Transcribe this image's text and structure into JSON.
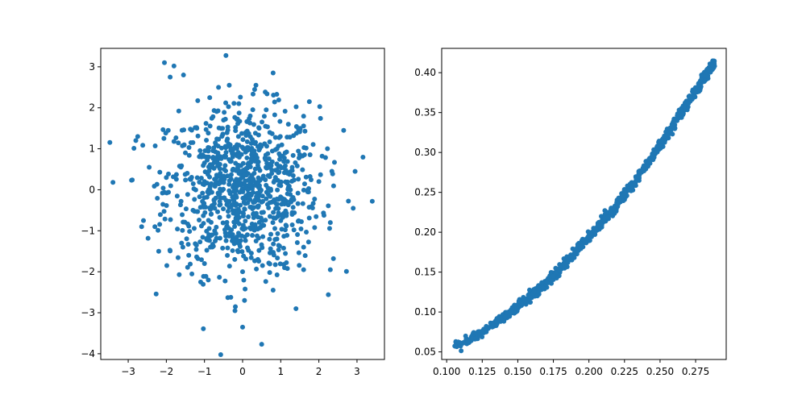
{
  "colors": {
    "marker": "#1f77b4",
    "axes": "#000000",
    "background": "#ffffff"
  },
  "chart_data": [
    {
      "type": "scatter",
      "title": "",
      "xlabel": "",
      "ylabel": "",
      "grid": false,
      "xlim": [
        -3.72,
        3.72
      ],
      "ylim": [
        -4.14,
        3.45
      ],
      "xticks": [
        -3,
        -2,
        -1,
        0,
        1,
        2,
        3
      ],
      "yticks": [
        -4,
        -3,
        -2,
        -1,
        0,
        1,
        2,
        3
      ],
      "xtick_labels": [
        "−3",
        "−2",
        "−1",
        "0",
        "1",
        "2",
        "3"
      ],
      "ytick_labels": [
        "−4",
        "−3",
        "−2",
        "−1",
        "0",
        "1",
        "2",
        "3"
      ],
      "points_note": "Approximately 1000 points drawn from a 2D standard normal distribution centered at (0,0); notable outliers listed below.",
      "points": [
        [
          -2.05,
          3.1
        ],
        [
          -1.8,
          3.02
        ],
        [
          -1.9,
          2.75
        ],
        [
          -1.55,
          2.8
        ],
        [
          0.8,
          2.85
        ],
        [
          -0.35,
          2.55
        ],
        [
          0.35,
          2.55
        ],
        [
          -3.4,
          0.18
        ],
        [
          3.4,
          -0.28
        ],
        [
          -2.75,
          1.3
        ],
        [
          -2.8,
          1.2
        ],
        [
          -2.45,
          0.55
        ],
        [
          2.95,
          0.45
        ],
        [
          2.65,
          1.45
        ],
        [
          0.5,
          -3.77
        ],
        [
          0.0,
          -3.35
        ],
        [
          -0.2,
          -2.95
        ],
        [
          0.05,
          -2.7
        ],
        [
          1.4,
          -2.9
        ],
        [
          2.3,
          -1.95
        ],
        [
          -2.2,
          -1.5
        ],
        [
          -1.1,
          -2.25
        ],
        [
          -0.9,
          -2.2
        ],
        [
          0.8,
          -2.45
        ],
        [
          1.6,
          -1.95
        ],
        [
          -2.6,
          -0.75
        ],
        [
          2.9,
          -0.45
        ],
        [
          -1.95,
          1.45
        ],
        [
          1.75,
          2.15
        ],
        [
          -0.1,
          2.1
        ],
        [
          0.2,
          1.8
        ],
        [
          -0.5,
          1.7
        ],
        [
          1.2,
          1.6
        ],
        [
          -1.2,
          1.5
        ],
        [
          0.6,
          1.55
        ],
        [
          -0.7,
          1.1
        ],
        [
          0.9,
          1.0
        ],
        [
          -1.5,
          0.9
        ],
        [
          1.5,
          0.8
        ],
        [
          -0.3,
          0.7
        ],
        [
          0.4,
          0.6
        ],
        [
          -2.0,
          0.3
        ],
        [
          2.0,
          0.2
        ],
        [
          -1.0,
          0.2
        ],
        [
          1.0,
          0.1
        ],
        [
          0.0,
          0.0
        ],
        [
          -0.5,
          -0.2
        ],
        [
          0.5,
          -0.3
        ],
        [
          -1.3,
          -0.5
        ],
        [
          1.3,
          -0.6
        ],
        [
          -0.2,
          -0.8
        ],
        [
          0.3,
          -0.9
        ],
        [
          -0.8,
          -1.1
        ],
        [
          0.9,
          -1.2
        ],
        [
          -1.6,
          -1.3
        ],
        [
          1.6,
          -1.4
        ],
        [
          -0.4,
          -1.6
        ],
        [
          0.4,
          -1.7
        ],
        [
          0.0,
          -2.0
        ],
        [
          -1.0,
          -1.8
        ],
        [
          1.1,
          -1.9
        ],
        [
          -2.3,
          -0.9
        ],
        [
          2.3,
          -0.8
        ]
      ]
    },
    {
      "type": "scatter",
      "title": "",
      "xlabel": "",
      "ylabel": "",
      "grid": false,
      "xlim": [
        0.0965,
        0.2965
      ],
      "ylim": [
        0.0405,
        0.4305
      ],
      "xticks": [
        0.1,
        0.125,
        0.15,
        0.175,
        0.2,
        0.225,
        0.25,
        0.275
      ],
      "yticks": [
        0.05,
        0.1,
        0.15,
        0.2,
        0.25,
        0.3,
        0.35,
        0.4
      ],
      "xtick_labels": [
        "0.100",
        "0.125",
        "0.150",
        "0.175",
        "0.200",
        "0.225",
        "0.250",
        "0.275"
      ],
      "ytick_labels": [
        "0.05",
        "0.10",
        "0.15",
        "0.20",
        "0.25",
        "0.30",
        "0.35",
        "0.40"
      ],
      "points_note": "Approximately 1000 points tightly following an increasing convex curve from about (0.106, 0.057) to (0.288, 0.413); anchor points along the curve listed below.",
      "curve": [
        [
          0.106,
          0.057
        ],
        [
          0.115,
          0.064
        ],
        [
          0.125,
          0.075
        ],
        [
          0.135,
          0.088
        ],
        [
          0.145,
          0.1
        ],
        [
          0.155,
          0.114
        ],
        [
          0.165,
          0.128
        ],
        [
          0.175,
          0.145
        ],
        [
          0.185,
          0.164
        ],
        [
          0.195,
          0.184
        ],
        [
          0.205,
          0.203
        ],
        [
          0.215,
          0.225
        ],
        [
          0.225,
          0.247
        ],
        [
          0.235,
          0.27
        ],
        [
          0.245,
          0.296
        ],
        [
          0.255,
          0.322
        ],
        [
          0.265,
          0.351
        ],
        [
          0.275,
          0.377
        ],
        [
          0.282,
          0.397
        ],
        [
          0.288,
          0.413
        ]
      ]
    }
  ]
}
